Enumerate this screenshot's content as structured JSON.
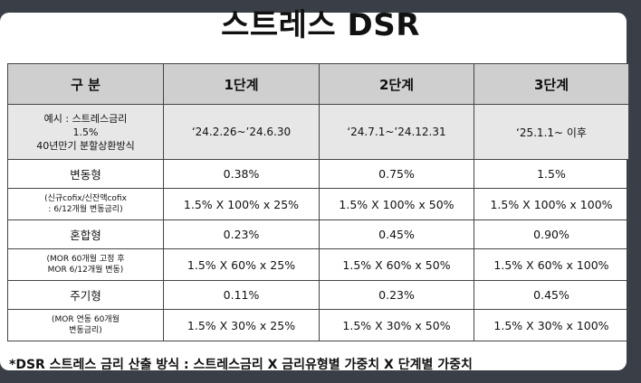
{
  "title": "스트레스 DSR",
  "table": {
    "headers": [
      "구  분",
      "1단계",
      "2단계",
      "3단계"
    ],
    "example": {
      "label_line1": "예시 : 스트레스금리",
      "label_line2": "1.5%",
      "label_line3": "40년만기 분할상환방식",
      "periods": [
        "‘24.2.26~’24.6.30",
        "‘24.7.1~’24.12.31",
        "‘25.1.1~ 이후"
      ]
    },
    "groups": [
      {
        "name": "변동형",
        "rates": [
          "0.38%",
          "0.75%",
          "1.5%"
        ],
        "note_line1": "(신규cofix/신잔액cofix",
        "note_line2": ": 6/12개월 변동금리)",
        "formulas": [
          "1.5% X 100% x 25%",
          "1.5% X 100% x 50%",
          "1.5% X 100% x 100%"
        ]
      },
      {
        "name": "혼합형",
        "rates": [
          "0.23%",
          "0.45%",
          "0.90%"
        ],
        "note_line1": "(MOR 60개월 고정 후",
        "note_line2": "MOR 6/12개월 변동)",
        "formulas": [
          "1.5% X 60% x 25%",
          "1.5% X 60% x 50%",
          "1.5% X 60% x 100%"
        ]
      },
      {
        "name": "주기형",
        "rates": [
          "0.11%",
          "0.23%",
          "0.45%"
        ],
        "note_line1": "(MOR 연동 60개월",
        "note_line2": "변동금리)",
        "formulas": [
          "1.5% X 30% x 25%",
          "1.5% X 30% x 50%",
          "1.5% X 30% x 100%"
        ]
      }
    ]
  },
  "footer": "*DSR 스트레스 금리 산출 방식 : 스트레스금리 X 금리유형별 가중치 X 단계별 가중치"
}
